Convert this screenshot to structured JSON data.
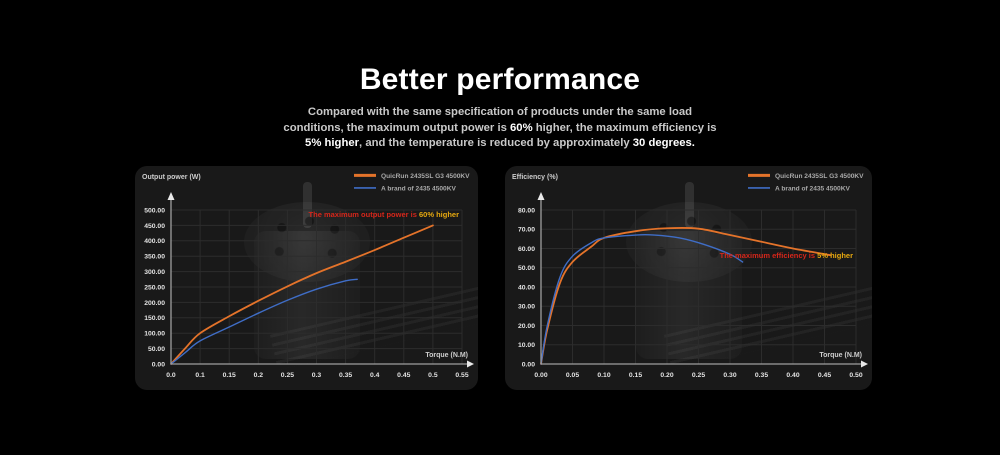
{
  "page": {
    "background": "#000000",
    "panel_color": "#191919"
  },
  "colors": {
    "accent_orange": "#e4732a",
    "accent_blue": "#3f6dc6",
    "annotation_red": "#d6261a",
    "annotation_yellow": "#e7a90f",
    "grid": "#2c2c2c",
    "axis": "#9e9e9e"
  },
  "header": {
    "title": "Better performance",
    "subtitle_segments": [
      {
        "text": "Compared with the same specification of products under the same load conditions, the maximum output power is ",
        "bold": false
      },
      {
        "text": "60%",
        "bold": true
      },
      {
        "text": " higher, the maximum efficiency is ",
        "bold": false
      },
      {
        "text": "5% higher",
        "bold": true
      },
      {
        "text": ", and the temperature is reduced by approximately ",
        "bold": false
      },
      {
        "text": "30 degrees.",
        "bold": true
      }
    ]
  },
  "chart_data": [
    {
      "type": "line",
      "id": "output-power",
      "y_axis_label": "Output power (W)",
      "x_axis_label": "Torque (N.M)",
      "grid": true,
      "legend_position": "top-right",
      "ylim": [
        0,
        500
      ],
      "x_ticks": [
        0.0,
        0.1,
        0.15,
        0.2,
        0.25,
        0.3,
        0.35,
        0.4,
        0.45,
        0.5,
        0.55
      ],
      "x_tick_labels": [
        "0.0",
        "0.1",
        "0.15",
        "0.2",
        "0.25",
        "0.3",
        "0.35",
        "0.4",
        "0.45",
        "0.5",
        "0.55"
      ],
      "y_ticks": [
        0,
        50,
        100,
        150,
        200,
        250,
        300,
        350,
        400,
        450,
        500
      ],
      "y_tick_labels": [
        "0.00",
        "50.00",
        "100.00",
        "150.00",
        "200.00",
        "250.00",
        "300.00",
        "350.00",
        "400.00",
        "450.00",
        "500.00"
      ],
      "series": [
        {
          "name": "QuicRun 2435SL G3 4500KV",
          "color": "#e4732a",
          "width": 1.8,
          "points": [
            [
              0,
              0
            ],
            [
              0.05,
              52
            ],
            [
              0.1,
              100
            ],
            [
              0.15,
              155
            ],
            [
              0.2,
              205
            ],
            [
              0.25,
              252
            ],
            [
              0.3,
              295
            ],
            [
              0.35,
              332
            ],
            [
              0.4,
              370
            ],
            [
              0.45,
              410
            ],
            [
              0.5,
              450
            ]
          ]
        },
        {
          "name": "A brand of 2435 4500KV",
          "color": "#3f6dc6",
          "width": 1.4,
          "points": [
            [
              0,
              0
            ],
            [
              0.05,
              38
            ],
            [
              0.1,
              75
            ],
            [
              0.15,
              120
            ],
            [
              0.2,
              165
            ],
            [
              0.25,
              207
            ],
            [
              0.3,
              243
            ],
            [
              0.35,
              270
            ],
            [
              0.37,
              275
            ]
          ]
        }
      ],
      "annotation": {
        "x": 0.55,
        "y": 478,
        "anchor": "end",
        "segments": [
          {
            "text": "The maximum output power is ",
            "color": "#d6261a"
          },
          {
            "text": "60% higher",
            "color": "#e7a90f"
          }
        ]
      }
    },
    {
      "type": "line",
      "id": "efficiency",
      "y_axis_label": "Efficiency (%)",
      "x_axis_label": "Torque (N.M)",
      "grid": true,
      "legend_position": "top-right",
      "ylim": [
        0,
        80
      ],
      "x_ticks": [
        0.0,
        0.05,
        0.1,
        0.15,
        0.2,
        0.25,
        0.3,
        0.35,
        0.4,
        0.45,
        0.5
      ],
      "x_tick_labels": [
        "0.00",
        "0.05",
        "0.10",
        "0.15",
        "0.20",
        "0.25",
        "0.30",
        "0.35",
        "0.40",
        "0.45",
        "0.50"
      ],
      "y_ticks": [
        0,
        10,
        20,
        30,
        40,
        50,
        60,
        70,
        80
      ],
      "y_tick_labels": [
        "0.00",
        "10.00",
        "20.00",
        "30.00",
        "40.00",
        "50.00",
        "60.00",
        "70.00",
        "80.00"
      ],
      "series": [
        {
          "name": "QuicRun 2435SL G3 4500KV",
          "color": "#e4732a",
          "width": 1.8,
          "points": [
            [
              0,
              0
            ],
            [
              0.01,
              18
            ],
            [
              0.03,
              42
            ],
            [
              0.05,
              53
            ],
            [
              0.08,
              61
            ],
            [
              0.1,
              65.5
            ],
            [
              0.15,
              69
            ],
            [
              0.2,
              70.5
            ],
            [
              0.25,
              70.3
            ],
            [
              0.3,
              67
            ],
            [
              0.35,
              63.5
            ],
            [
              0.4,
              60
            ],
            [
              0.46,
              56.5
            ]
          ]
        },
        {
          "name": "A brand of 2435 4500KV",
          "color": "#3f6dc6",
          "width": 1.4,
          "points": [
            [
              0,
              0
            ],
            [
              0.01,
              20
            ],
            [
              0.03,
              45
            ],
            [
              0.05,
              56
            ],
            [
              0.08,
              63
            ],
            [
              0.1,
              65.5
            ],
            [
              0.15,
              67
            ],
            [
              0.18,
              67
            ],
            [
              0.22,
              65.5
            ],
            [
              0.26,
              62
            ],
            [
              0.3,
              57
            ],
            [
              0.32,
              53
            ]
          ]
        }
      ],
      "annotation": {
        "x": 0.5,
        "y": 55,
        "anchor": "end",
        "segments": [
          {
            "text": "The maximum efficiency is ",
            "color": "#d6261a"
          },
          {
            "text": "5% higher",
            "color": "#e7a90f"
          }
        ]
      }
    }
  ]
}
